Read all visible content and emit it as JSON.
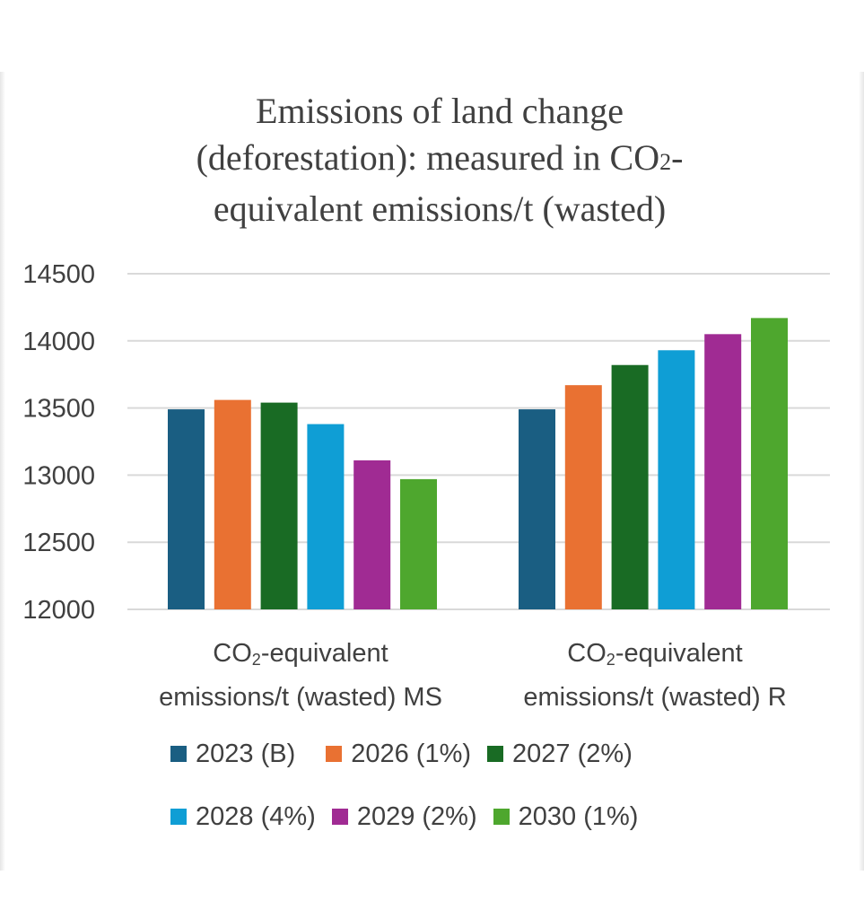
{
  "chart_data": {
    "type": "bar",
    "title_line1": "Emissions of land change",
    "title_line2_prefix": "(deforestation): measured in CO",
    "title_line2_sub": "2",
    "title_line2_suffix": "-",
    "title_line3": "equivalent emissions/t (wasted)",
    "categories": [
      {
        "line1_prefix": "CO",
        "line1_sub": "2",
        "line1_suffix": "-equivalent",
        "line2": "emissions/t (wasted) MS"
      },
      {
        "line1_prefix": "CO",
        "line1_sub": "2",
        "line1_suffix": "-equivalent",
        "line2": "emissions/t (wasted) R"
      }
    ],
    "ylim": [
      12000,
      14500
    ],
    "yticks": [
      "14500",
      "14000",
      "13500",
      "13000",
      "12500",
      "12000"
    ],
    "grid": true,
    "legend_position": "bottom",
    "series": [
      {
        "name": "2023 (B)",
        "color": "#1a5e82",
        "values": [
          13490,
          13490
        ]
      },
      {
        "name": "2026 (1%)",
        "color": "#e97132",
        "values": [
          13560,
          13670
        ]
      },
      {
        "name": "2027 (2%)",
        "color": "#196b24",
        "values": [
          13540,
          13820
        ]
      },
      {
        "name": "2028 (4%)",
        "color": "#0f9ed5",
        "values": [
          13380,
          13930
        ]
      },
      {
        "name": "2029 (2%)",
        "color": "#a02b93",
        "values": [
          13110,
          14050
        ]
      },
      {
        "name": "2030 (1%)",
        "color": "#4ea72e",
        "values": [
          12970,
          14170
        ]
      }
    ]
  }
}
